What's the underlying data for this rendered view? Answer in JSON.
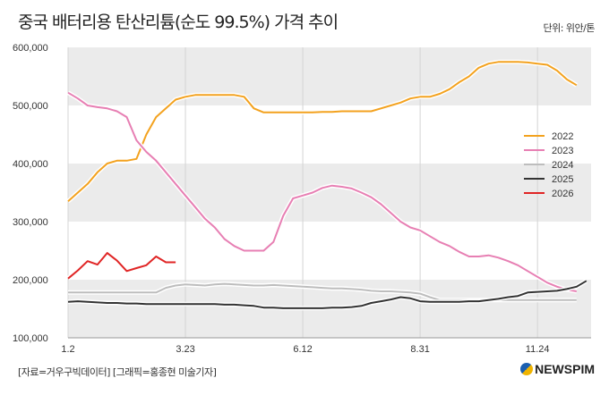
{
  "chart_data": {
    "type": "line",
    "title": "중국 배터리용 탄산리튬(순도 99.5%) 가격 추이",
    "unit_label": "단위: 위안/톤",
    "xlabel": "",
    "ylabel": "",
    "x_ticks": [
      "1.2",
      "3.23",
      "6.12",
      "8.31",
      "11.24"
    ],
    "y_ticks": [
      "100,000",
      "200,000",
      "300,000",
      "400,000",
      "500,000",
      "600,000"
    ],
    "ylim": [
      100000,
      600000
    ],
    "x_unit": "week index",
    "legend_position": "right",
    "series": [
      {
        "name": "2022",
        "color": "#f3a21f",
        "values": [
          335,
          350,
          365,
          385,
          400,
          405,
          405,
          408,
          450,
          480,
          495,
          510,
          515,
          518,
          518,
          518,
          518,
          518,
          515,
          495,
          488,
          488,
          488,
          488,
          488,
          488,
          489,
          489,
          490,
          490,
          490,
          490,
          495,
          500,
          505,
          512,
          515,
          515,
          520,
          528,
          540,
          550,
          565,
          572,
          575,
          575,
          575,
          574,
          572,
          570,
          560,
          545,
          535
        ]
      },
      {
        "name": "2023",
        "color": "#e77fb3",
        "values": [
          522,
          512,
          500,
          497,
          495,
          490,
          480,
          440,
          420,
          405,
          385,
          365,
          345,
          325,
          305,
          290,
          270,
          258,
          250,
          250,
          250,
          265,
          310,
          340,
          345,
          350,
          358,
          362,
          360,
          357,
          350,
          342,
          330,
          315,
          300,
          290,
          285,
          275,
          265,
          258,
          248,
          240,
          240,
          242,
          238,
          232,
          225,
          215,
          205,
          195,
          188,
          183,
          180
        ]
      },
      {
        "name": "2024",
        "color": "#bdbdbd",
        "values": [
          178,
          178,
          178,
          178,
          178,
          178,
          178,
          178,
          178,
          178,
          186,
          190,
          192,
          191,
          190,
          192,
          193,
          192,
          191,
          190,
          190,
          191,
          190,
          189,
          188,
          187,
          186,
          185,
          185,
          184,
          183,
          181,
          180,
          180,
          179,
          178,
          176,
          170,
          165,
          165,
          165,
          165,
          165,
          165,
          165,
          165,
          165,
          165,
          165,
          165,
          165,
          165,
          165
        ]
      },
      {
        "name": "2025",
        "color": "#333333",
        "values": [
          162,
          163,
          162,
          161,
          160,
          160,
          159,
          159,
          158,
          158,
          158,
          158,
          158,
          158,
          158,
          158,
          157,
          157,
          156,
          155,
          152,
          152,
          151,
          151,
          151,
          151,
          151,
          152,
          152,
          153,
          155,
          160,
          163,
          166,
          170,
          168,
          163,
          162,
          162,
          162,
          162,
          163,
          163,
          165,
          167,
          170,
          172,
          178,
          179,
          180,
          181,
          184,
          188,
          198
        ]
      },
      {
        "name": "2026",
        "color": "#e02525",
        "values": [
          202,
          216,
          232,
          226,
          246,
          233,
          215,
          220,
          225,
          240,
          230,
          230
        ]
      }
    ]
  },
  "footer": {
    "source": "[자료=거우구빅데이터] [그래픽=홍종현 미술기자]",
    "logo": "NEWSPIM"
  }
}
